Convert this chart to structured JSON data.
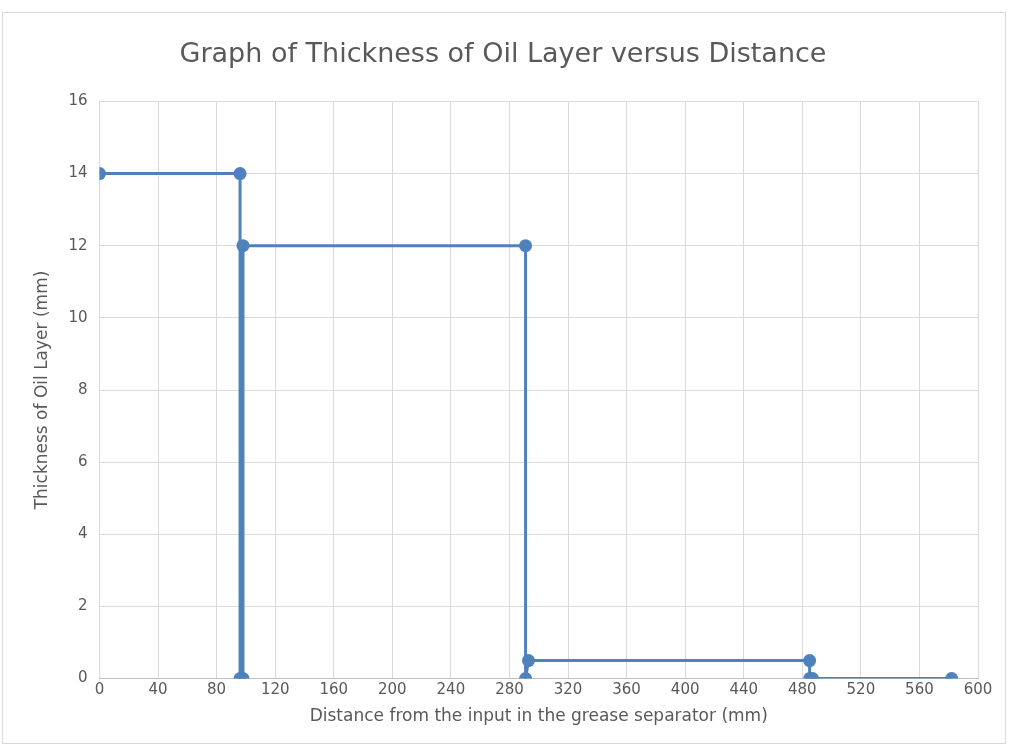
{
  "chart_data": {
    "type": "line",
    "title": "Graph of Thickness of Oil Layer versus Distance",
    "xlabel": "Distance from the input in the grease separator (mm)",
    "ylabel": "Thickness of Oil Layer (mm)",
    "x": [
      0,
      96,
      96,
      98,
      98,
      291,
      291,
      293,
      485,
      485,
      487,
      582
    ],
    "series": [
      {
        "color": "#4f81bd",
        "values": [
          14,
          14,
          0,
          0,
          12,
          12,
          0,
          0.5,
          0.5,
          0,
          0,
          0
        ]
      }
    ],
    "xlim": [
      0,
      600
    ],
    "xticks": [
      0,
      40,
      80,
      120,
      160,
      200,
      240,
      280,
      320,
      360,
      400,
      440,
      480,
      520,
      560,
      600
    ],
    "ylim": [
      0,
      16
    ],
    "yticks": [
      0,
      2,
      4,
      6,
      8,
      10,
      12,
      14,
      16
    ],
    "grid": true,
    "marker": "circle",
    "line_style": "solid"
  }
}
